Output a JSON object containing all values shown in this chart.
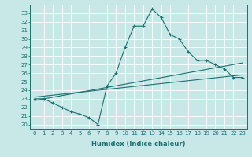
{
  "xlabel": "Humidex (Indice chaleur)",
  "bg_color": "#c8e8e8",
  "line_color": "#1a7070",
  "grid_color": "#ffffff",
  "xlim": [
    -0.5,
    23.5
  ],
  "ylim": [
    19.5,
    34.0
  ],
  "xticks": [
    0,
    1,
    2,
    3,
    4,
    5,
    6,
    7,
    8,
    9,
    10,
    11,
    12,
    13,
    14,
    15,
    16,
    17,
    18,
    19,
    20,
    21,
    22,
    23
  ],
  "yticks": [
    20,
    21,
    22,
    23,
    24,
    25,
    26,
    27,
    28,
    29,
    30,
    31,
    32,
    33
  ],
  "curve_x": [
    0,
    1,
    2,
    3,
    4,
    5,
    6,
    7,
    8,
    9,
    10,
    11,
    12,
    13,
    14,
    15,
    16,
    17,
    18,
    19,
    20,
    21,
    22,
    23
  ],
  "curve_y": [
    23.0,
    23.0,
    22.5,
    22.0,
    21.5,
    21.2,
    20.8,
    20.0,
    24.5,
    26.0,
    29.0,
    31.5,
    31.5,
    33.5,
    32.5,
    30.5,
    30.0,
    28.5,
    27.5,
    27.5,
    27.0,
    26.5,
    25.5,
    25.5
  ],
  "line2_x": [
    0,
    23
  ],
  "line2_y": [
    22.8,
    27.2
  ],
  "line3_x": [
    0,
    23
  ],
  "line3_y": [
    23.2,
    25.8
  ]
}
